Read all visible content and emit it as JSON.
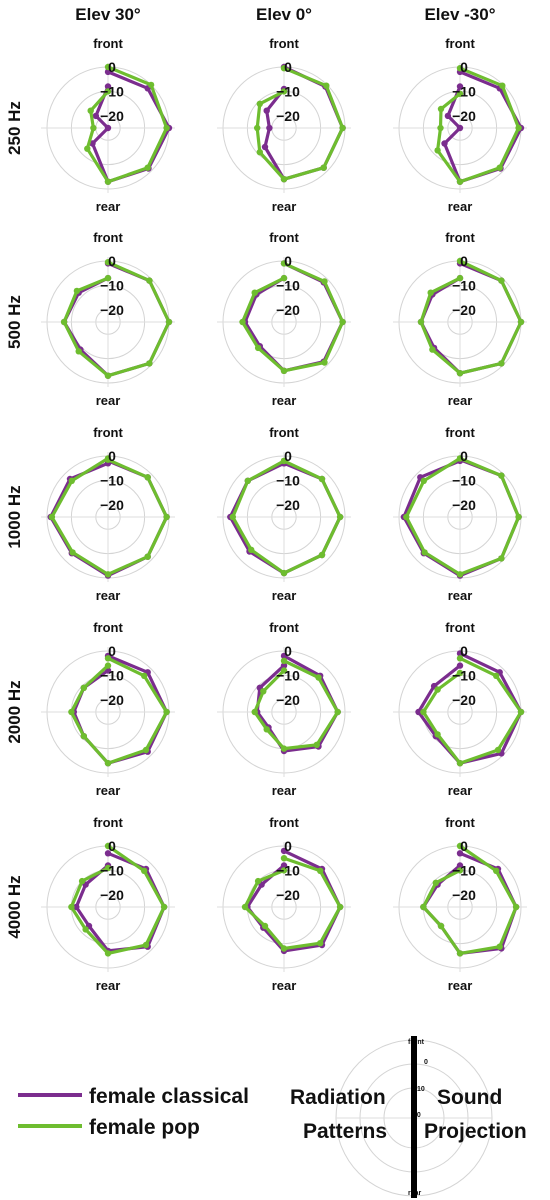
{
  "chart_data": {
    "type": "polar-line-grid",
    "column_titles": [
      "Elev 30°",
      "Elev 0°",
      "Elev -30°"
    ],
    "row_labels": [
      "250 Hz",
      "500 Hz",
      "1000 Hz",
      "2000 Hz",
      "4000 Hz"
    ],
    "position_labels": {
      "top": "front",
      "bottom": "rear"
    },
    "r_ticks": [
      {
        "value": 0,
        "label": "0"
      },
      {
        "value": -10,
        "label": "−10"
      },
      {
        "value": -20,
        "label": "−20"
      }
    ],
    "r_range": [
      -25,
      0
    ],
    "angles_deg": [
      0,
      45,
      90,
      135,
      180,
      225,
      270,
      315,
      0
    ],
    "series": [
      {
        "name": "female classical",
        "color": "#7b2d8e"
      },
      {
        "name": "female pop",
        "color": "#6ebd2f"
      }
    ],
    "panels": [
      {
        "row": 0,
        "col": 0,
        "values": {
          "female classical": [
            -8,
            -18,
            -26,
            -16,
            -3,
            -1.5,
            0,
            -2,
            -2
          ],
          "female pop": [
            -10,
            -15,
            -19,
            -13,
            -3,
            -2,
            -1,
            0,
            0
          ]
        }
      },
      {
        "row": 0,
        "col": 1,
        "values": {
          "female classical": [
            -9,
            -15,
            -19,
            -14,
            -4,
            -2,
            -1,
            -1,
            0
          ],
          "female pop": [
            -10,
            -11,
            -14,
            -11,
            -4,
            -2,
            -1,
            -0.5,
            -0.5
          ]
        }
      },
      {
        "row": 0,
        "col": 2,
        "values": {
          "female classical": [
            -8,
            -18,
            -25,
            -16,
            -3,
            -1.5,
            0,
            -2,
            -2
          ],
          "female pop": [
            -11,
            -14,
            -17,
            -12,
            -3,
            -2,
            -1,
            -0.5,
            -0.5
          ]
        }
      },
      {
        "row": 1,
        "col": 0,
        "values": {
          "female classical": [
            -7,
            -8,
            -7,
            -9,
            -3,
            -1,
            0,
            -1,
            -1
          ],
          "female pop": [
            -7,
            -7,
            -7,
            -8,
            -3,
            -1,
            0,
            -1,
            -0.5
          ]
        }
      },
      {
        "row": 1,
        "col": 1,
        "values": {
          "female classical": [
            -7,
            -9,
            -9,
            -11,
            -5,
            -2,
            -1,
            -2,
            -1
          ],
          "female pop": [
            -7,
            -8,
            -8,
            -10,
            -5,
            -1.5,
            -1,
            -1.5,
            -1
          ]
        }
      },
      {
        "row": 1,
        "col": 2,
        "values": {
          "female classical": [
            -7,
            -9,
            -9,
            -10,
            -4,
            -1,
            0,
            -1,
            -1
          ],
          "female pop": [
            -7,
            -8,
            -9,
            -9,
            -4,
            -1,
            0,
            -1,
            0
          ]
        }
      },
      {
        "row": 2,
        "col": 0,
        "values": {
          "female classical": [
            -3,
            -3,
            -1.5,
            -4,
            -1,
            -2,
            -1,
            -2,
            -2
          ],
          "female pop": [
            -1,
            -4,
            -2,
            -4.5,
            -1.5,
            -2,
            -1,
            -2,
            -1.5
          ]
        }
      },
      {
        "row": 2,
        "col": 1,
        "values": {
          "female classical": [
            -3,
            -4,
            -3,
            -5,
            -2,
            -3,
            -2,
            -3,
            -3
          ],
          "female pop": [
            -2,
            -4,
            -4,
            -6,
            -2,
            -3,
            -2,
            -3,
            -2
          ]
        }
      },
      {
        "row": 2,
        "col": 2,
        "values": {
          "female classical": [
            -2,
            -2,
            -2,
            -4,
            -1,
            -1,
            -1,
            -1,
            -1.5
          ],
          "female pop": [
            -1,
            -4,
            -3,
            -4.5,
            -1.5,
            -1,
            -1,
            -1,
            -1
          ]
        }
      },
      {
        "row": 3,
        "col": 0,
        "values": {
          "female classical": [
            -8,
            -11,
            -11,
            -11,
            -4,
            -2,
            -1,
            -2,
            -2
          ],
          "female pop": [
            -6,
            -11,
            -10,
            -11,
            -4,
            -3,
            -1,
            -4,
            -3
          ]
        }
      },
      {
        "row": 3,
        "col": 1,
        "values": {
          "female classical": [
            -6,
            -11,
            -14,
            -16,
            -9,
            -5,
            -3,
            -4,
            -2
          ],
          "female pop": [
            -8,
            -13,
            -13,
            -15,
            -10,
            -6,
            -3,
            -5,
            -4
          ]
        }
      },
      {
        "row": 3,
        "col": 2,
        "values": {
          "female classical": [
            -6,
            -10,
            -8,
            -11,
            -4,
            -1,
            0,
            -2,
            -1
          ],
          "female pop": [
            -9,
            -12,
            -10,
            -12,
            -4,
            -3,
            0,
            -4,
            -3
          ]
        }
      },
      {
        "row": 4,
        "col": 0,
        "values": {
          "female classical": [
            -8,
            -12,
            -12,
            -14,
            -7,
            -2,
            -2,
            -3,
            -3
          ],
          "female pop": [
            -9,
            -10,
            -10,
            -12,
            -6,
            -3,
            -2,
            -4,
            0
          ]
        }
      },
      {
        "row": 4,
        "col": 1,
        "values": {
          "female classical": [
            -8,
            -12,
            -10,
            -13,
            -7,
            -3,
            -2,
            -3,
            -2
          ],
          "female pop": [
            -10,
            -10,
            -9,
            -14,
            -8,
            -4,
            -2,
            -4,
            -5
          ]
        }
      },
      {
        "row": 4,
        "col": 2,
        "values": {
          "female classical": [
            -8,
            -12,
            -10,
            -14,
            -6,
            -1,
            -2,
            -3,
            -3
          ],
          "female pop": [
            -10,
            -11,
            -10,
            -14,
            -6,
            -2,
            -2,
            -4,
            0
          ]
        }
      }
    ]
  },
  "legend": {
    "items": [
      {
        "label": "female classical",
        "color": "#7b2d8e"
      },
      {
        "label": "female pop",
        "color": "#6ebd2f"
      }
    ]
  },
  "caption_words": {
    "left_top": "Radiation",
    "left_bottom": "Patterns",
    "right_top": "Sound",
    "right_bottom": "Projection"
  },
  "mini_polar": {
    "top": "front",
    "bottom": "rear",
    "tick_0": "0",
    "tick_10": "10",
    "tick_20": "20"
  }
}
